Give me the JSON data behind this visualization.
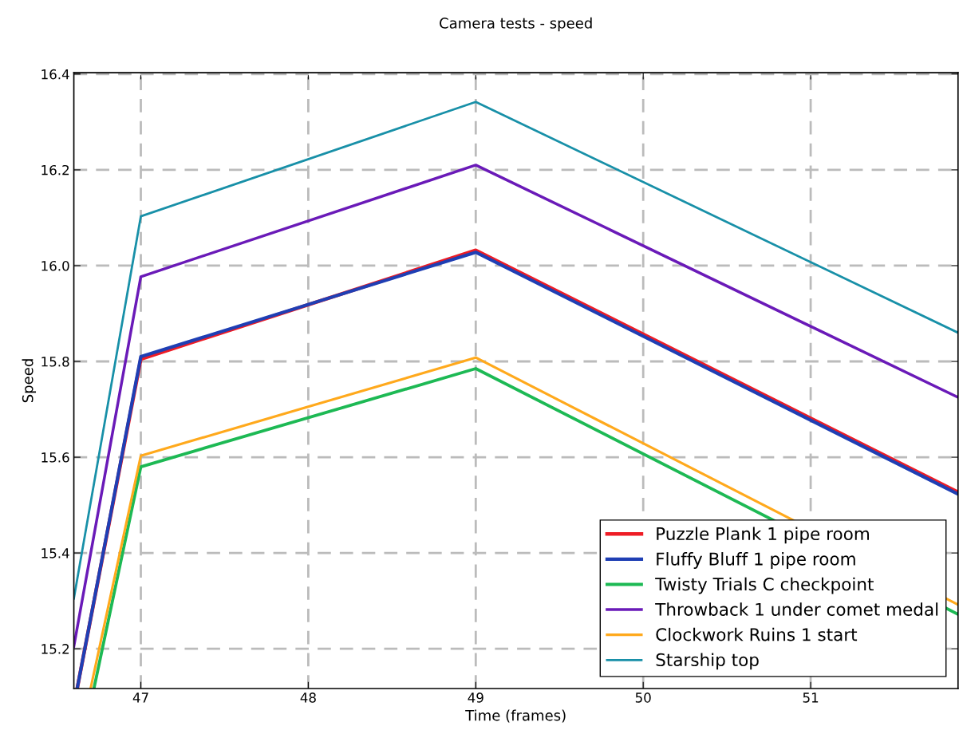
{
  "chart_data": {
    "type": "line",
    "title": "Camera tests - speed",
    "xlabel": "Time (frames)",
    "ylabel": "Speed",
    "xlim": [
      46.6,
      51.88
    ],
    "xticks": [
      47,
      48,
      49,
      50,
      51
    ],
    "ylim": [
      15.117,
      16.403
    ],
    "yticks": [
      15.2,
      15.4,
      15.6,
      15.8,
      {
        "value": 16,
        "label": "16.0"
      },
      16.2,
      16.4
    ],
    "grid": true,
    "legend": "bottom right",
    "line_style": "solid",
    "marker": "none",
    "series": [
      {
        "name": "Puzzle Plank 1 pipe room",
        "color": "#ee1c25",
        "x": [
          46.62,
          47,
          49,
          51.88
        ],
        "values": [
          15.117,
          15.805,
          16.032,
          15.527
        ]
      },
      {
        "name": "Fluffy Bluff 1 pipe room",
        "color": "#1f3fb4",
        "x": [
          46.62,
          47,
          49,
          51.88
        ],
        "values": [
          15.117,
          15.81,
          16.028,
          15.523
        ]
      },
      {
        "name": "Twisty Trials C checkpoint",
        "color": "#1db954",
        "x": [
          46.72,
          47,
          49,
          51.88
        ],
        "values": [
          15.117,
          15.58,
          15.785,
          15.272
        ]
      },
      {
        "name": "Throwback 1 under comet medal",
        "color": "#6a1ab8",
        "x": [
          46.6,
          47,
          49,
          51.88
        ],
        "values": [
          15.205,
          15.977,
          16.21,
          15.725
        ]
      },
      {
        "name": "Clockwork Ruins 1 start",
        "color": "#ffa91c",
        "x": [
          46.7,
          47,
          49,
          51.88
        ],
        "values": [
          15.117,
          15.603,
          15.808,
          15.292
        ]
      },
      {
        "name": "Starship top",
        "color": "#1890a8",
        "x": [
          46.6,
          47,
          49,
          51.88
        ],
        "values": [
          15.305,
          16.103,
          16.342,
          15.86
        ]
      }
    ]
  }
}
